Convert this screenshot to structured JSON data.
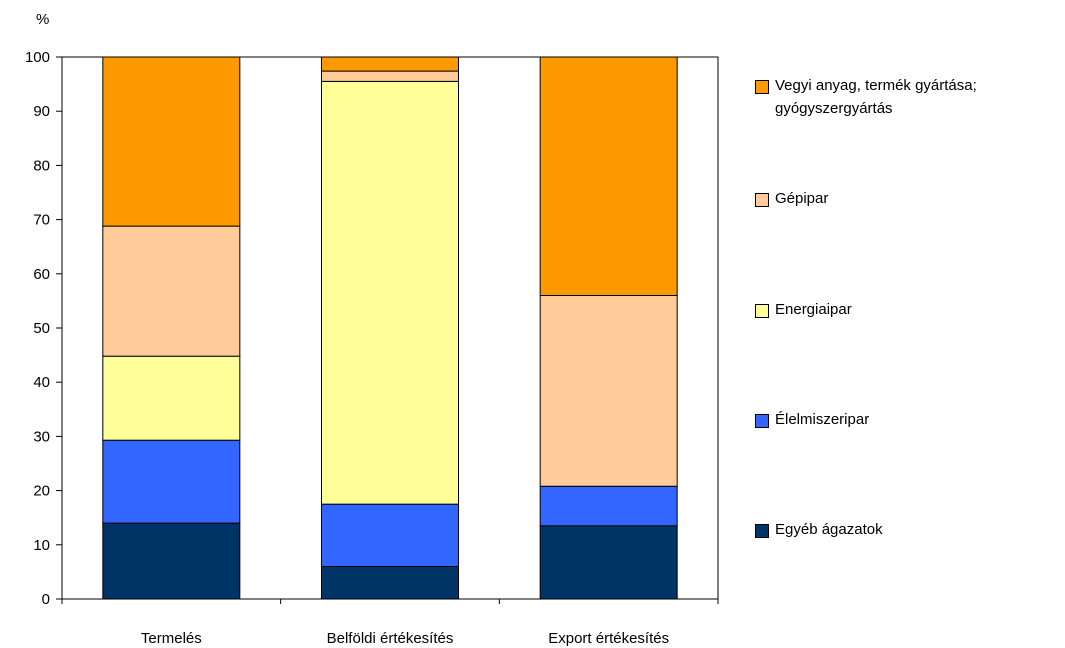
{
  "chart_data": {
    "type": "bar",
    "stacked": true,
    "unit_label": "%",
    "ylim": [
      0,
      100
    ],
    "yticks": [
      0,
      10,
      20,
      30,
      40,
      50,
      60,
      70,
      80,
      90,
      100
    ],
    "categories": [
      "Termelés",
      "Belföldi értékesítés",
      "Export értékesítés"
    ],
    "legend_position": "right",
    "series": [
      {
        "name": "Egyéb ágazatok",
        "color": "#003366",
        "values": [
          14,
          6,
          13.5
        ]
      },
      {
        "name": "Élelmiszeripar",
        "color": "#3366FF",
        "values": [
          15.3,
          11.5,
          7.3
        ]
      },
      {
        "name": "Energiaipar",
        "color": "#FFFF99",
        "values": [
          15.5,
          78,
          0
        ]
      },
      {
        "name": "Gépipar",
        "color": "#FFCC99",
        "values": [
          24,
          1.9,
          35.2
        ]
      },
      {
        "name": "Vegyi anyag, termék gyártása; gyógyszergyártás",
        "color": "#FF9900",
        "values": [
          31.2,
          2.6,
          44
        ]
      }
    ]
  }
}
